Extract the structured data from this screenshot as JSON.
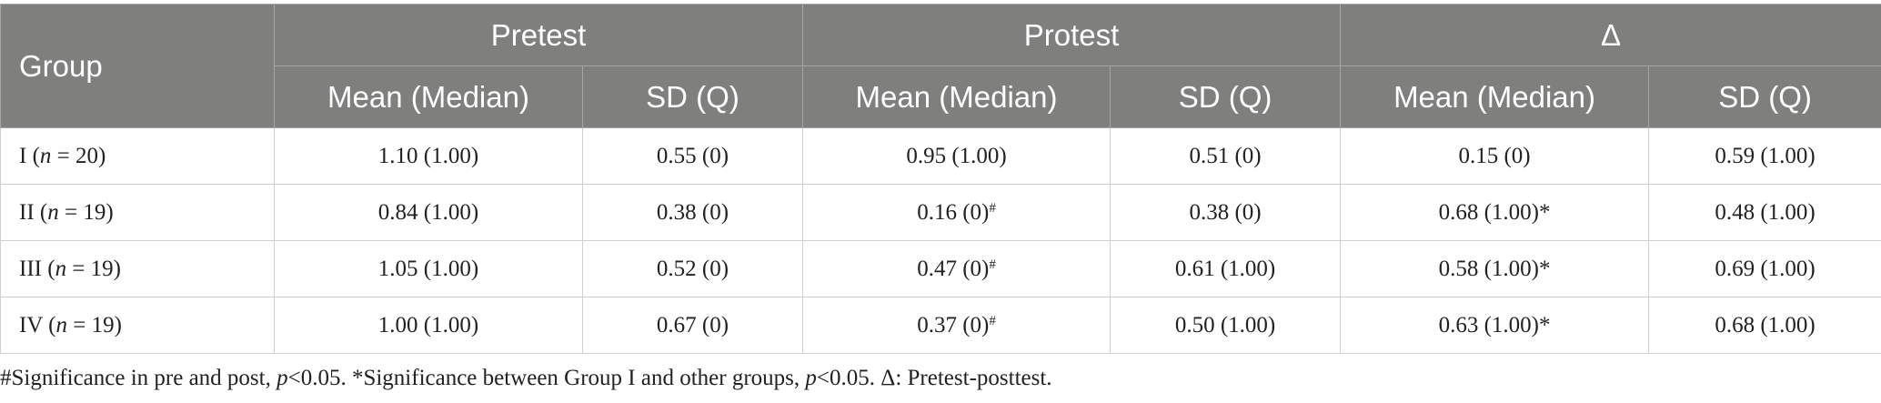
{
  "table": {
    "header": {
      "group": "Group",
      "spans": [
        "Pretest",
        "Protest",
        "Δ"
      ],
      "sub": [
        "Mean (Median)",
        "SD (Q)",
        "Mean (Median)",
        "SD (Q)",
        "Mean (Median)",
        "SD (Q)"
      ]
    },
    "rows": [
      {
        "group": [
          "I (",
          "n",
          " = 20)"
        ],
        "cells": [
          "1.10 (1.00)",
          "0.55 (0)",
          "0.95 (1.00)",
          "0.51 (0)",
          "0.15 (0)",
          "0.59 (1.00)"
        ]
      },
      {
        "group": [
          "II (",
          "n",
          " = 19)"
        ],
        "cells": [
          "0.84 (1.00)",
          "0.38 (0)",
          {
            "text": "0.16 (0)",
            "sup": "#"
          },
          "0.38 (0)",
          "0.68 (1.00)*",
          "0.48 (1.00)"
        ]
      },
      {
        "group": [
          "III (",
          "n",
          " = 19)"
        ],
        "cells": [
          "1.05 (1.00)",
          "0.52 (0)",
          {
            "text": "0.47 (0)",
            "sup": "#"
          },
          "0.61 (1.00)",
          "0.58 (1.00)*",
          "0.69 (1.00)"
        ]
      },
      {
        "group": [
          "IV (",
          "n",
          " = 19)"
        ],
        "cells": [
          "1.00 (1.00)",
          "0.67 (0)",
          {
            "text": "0.37 (0)",
            "sup": "#"
          },
          "0.50 (1.00)",
          "0.63 (1.00)*",
          "0.68 (1.00)"
        ]
      }
    ]
  },
  "footnote": [
    "#Significance in pre and post, ",
    "p",
    "<0.05. *Significance between Group I and other groups, ",
    "p",
    "<0.05. Δ: Pretest-posttest."
  ]
}
